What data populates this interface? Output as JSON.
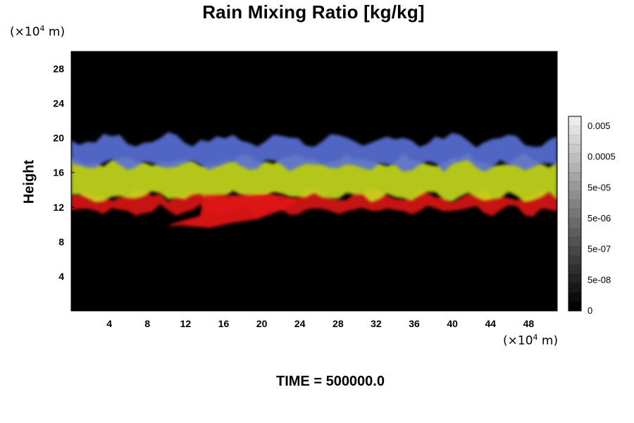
{
  "chart_data": {
    "type": "heatmap",
    "title": "Rain Mixing Ratio [kg/kg]",
    "ylabel": "Height",
    "xlabel": "",
    "x_scale_label": "(×10",
    "x_scale_exp": "4",
    "x_scale_unit": " m)",
    "y_scale_label": "(×10",
    "y_scale_exp": "4",
    "y_scale_unit": " m)",
    "xlim": [
      0,
      51
    ],
    "ylim": [
      0,
      30
    ],
    "x_ticks": [
      4,
      8,
      12,
      16,
      20,
      24,
      28,
      32,
      36,
      40,
      44,
      48
    ],
    "y_ticks": [
      4,
      8,
      12,
      16,
      20,
      24,
      28
    ],
    "background_color": "#000000",
    "layers": [
      {
        "color": "#5a6fd8",
        "y_bottom": 16.8,
        "y_top": 19.8
      },
      {
        "color": "#c8dc1e",
        "y_bottom": 13.2,
        "y_top": 17.4
      },
      {
        "color": "#dc1414",
        "y_bottom": 11.6,
        "y_top": 13.4
      }
    ],
    "rain_shaft": {
      "color": "#e01818",
      "x_start": 10,
      "x_end": 24,
      "y_bottom": 9.6,
      "y_top": 13.4
    },
    "colorbar": {
      "tick_labels": [
        "0.005",
        "0.0005",
        "5e-05",
        "5e-06",
        "5e-07",
        "5e-08",
        "0"
      ],
      "levels": 21,
      "color_low": "#000000",
      "color_high": "#ececec"
    },
    "footer": "TIME = 500000.0"
  }
}
